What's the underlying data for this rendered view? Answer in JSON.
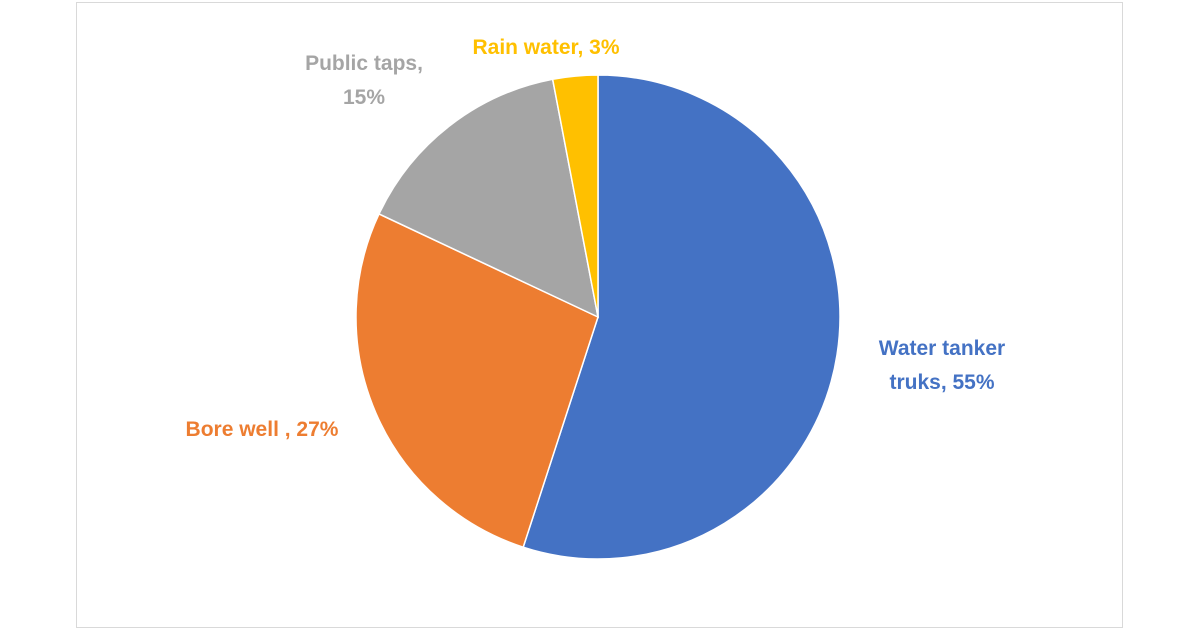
{
  "chart_data": {
    "type": "pie",
    "start_angle_deg": 0,
    "direction": "clockwise",
    "slices": [
      {
        "label_lines": [
          "Water tanker",
          "truks, 55%"
        ],
        "value": 55,
        "color": "#4472C4"
      },
      {
        "label_lines": [
          "Bore well , 27%"
        ],
        "value": 27,
        "color": "#ED7D31"
      },
      {
        "label_lines": [
          "Public taps,",
          "15%"
        ],
        "value": 15,
        "color": "#A5A5A5"
      },
      {
        "label_lines": [
          "Rain water, 3%"
        ],
        "value": 3,
        "color": "#FFC000"
      }
    ]
  }
}
